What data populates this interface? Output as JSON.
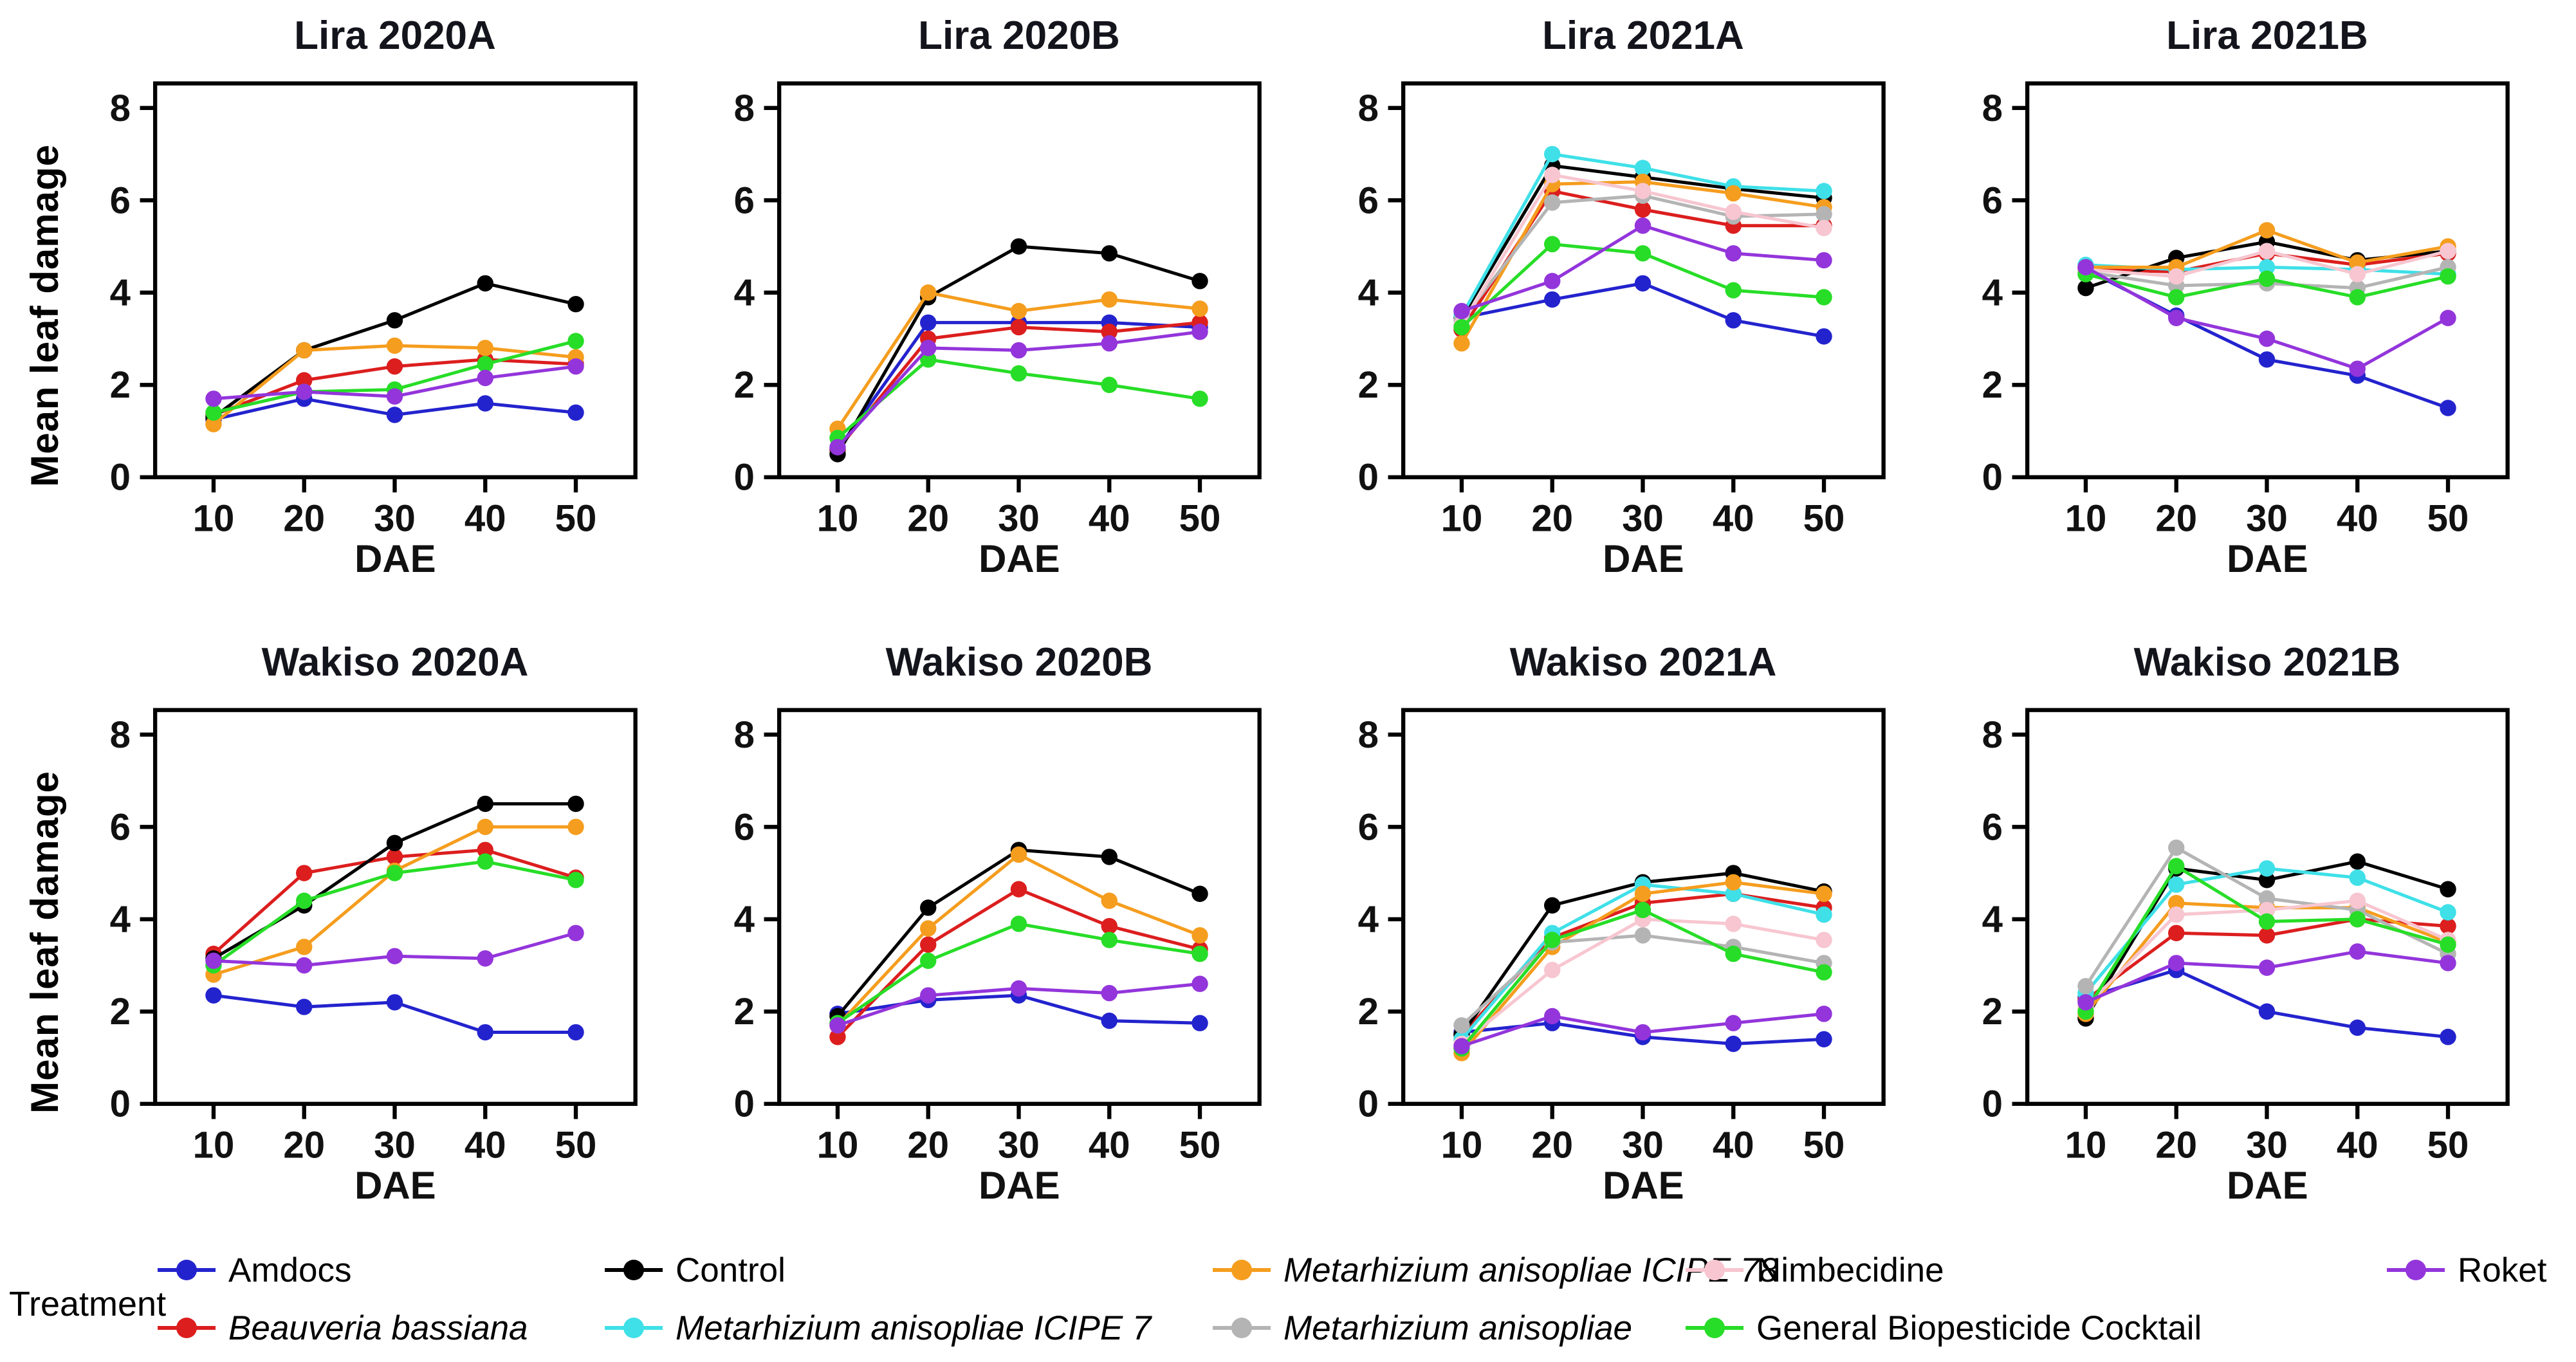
{
  "figure": {
    "ylabel": "Mean leaf damage",
    "xlabel": "DAE",
    "legend_title": "Treatment"
  },
  "treatments": [
    {
      "name": "Amdocs",
      "color": "#2323CE",
      "italic": false
    },
    {
      "name": "Beauveria bassiana",
      "color": "#DC1E1E",
      "italic": true
    },
    {
      "name": "Control",
      "color": "#000000",
      "italic": false
    },
    {
      "name": "Metarhizium anisopliae ICIPE 7",
      "color": "#3FE0E8",
      "italic": true
    },
    {
      "name": "Metarhizium anisopliae ICIPE 78",
      "color": "#F59D1E",
      "italic": true
    },
    {
      "name": "Metarhizium anisopliae",
      "color": "#B4B4B4",
      "italic": true
    },
    {
      "name": "Nimbecidine",
      "color": "#F7C6D0",
      "italic": false
    },
    {
      "name": "General Biopesticide Cocktail",
      "color": "#27DD27",
      "italic": false
    },
    {
      "name": "Roket",
      "color": "#9335DB",
      "italic": false
    }
  ],
  "chart_data": [
    {
      "type": "line",
      "title": "Lira 2020A",
      "xlabel": "DAE",
      "x": [
        10,
        20,
        30,
        40,
        50
      ],
      "ylim": [
        0,
        8
      ],
      "yticks": [
        0,
        2,
        4,
        6,
        8
      ],
      "series": [
        {
          "name": "Amdocs",
          "values": [
            1.25,
            1.7,
            1.35,
            1.6,
            1.4
          ]
        },
        {
          "name": "Beauveria bassiana",
          "values": [
            1.35,
            2.1,
            2.4,
            2.55,
            2.45
          ]
        },
        {
          "name": "Control",
          "values": [
            1.3,
            2.75,
            3.4,
            4.2,
            3.75
          ]
        },
        {
          "name": "Metarhizium anisopliae ICIPE 78",
          "values": [
            1.15,
            2.75,
            2.85,
            2.8,
            2.6
          ]
        },
        {
          "name": "General Biopesticide Cocktail",
          "values": [
            1.4,
            1.85,
            1.9,
            2.45,
            2.95
          ]
        },
        {
          "name": "Roket",
          "values": [
            1.7,
            1.85,
            1.75,
            2.15,
            2.4
          ]
        }
      ]
    },
    {
      "type": "line",
      "title": "Lira 2020B",
      "xlabel": "DAE",
      "x": [
        10,
        20,
        30,
        40,
        50
      ],
      "ylim": [
        0,
        8
      ],
      "yticks": [
        0,
        2,
        4,
        6,
        8
      ],
      "series": [
        {
          "name": "Amdocs",
          "values": [
            0.6,
            3.35,
            3.35,
            3.35,
            3.25
          ]
        },
        {
          "name": "Beauveria bassiana",
          "values": [
            0.6,
            3.0,
            3.25,
            3.15,
            3.35
          ]
        },
        {
          "name": "Control",
          "values": [
            0.5,
            3.9,
            5.0,
            4.85,
            4.25
          ]
        },
        {
          "name": "Metarhizium anisopliae ICIPE 78",
          "values": [
            1.05,
            4.0,
            3.6,
            3.85,
            3.65
          ]
        },
        {
          "name": "General Biopesticide Cocktail",
          "values": [
            0.85,
            2.55,
            2.25,
            2.0,
            1.7
          ]
        },
        {
          "name": "Roket",
          "values": [
            0.65,
            2.8,
            2.75,
            2.9,
            3.15
          ]
        }
      ]
    },
    {
      "type": "line",
      "title": "Lira 2021A",
      "xlabel": "DAE",
      "x": [
        10,
        20,
        30,
        40,
        50
      ],
      "ylim": [
        0,
        8
      ],
      "yticks": [
        0,
        2,
        4,
        6,
        8
      ],
      "series": [
        {
          "name": "Amdocs",
          "values": [
            3.45,
            3.85,
            4.2,
            3.4,
            3.05
          ]
        },
        {
          "name": "Beauveria bassiana",
          "values": [
            3.2,
            6.2,
            5.8,
            5.45,
            5.45
          ]
        },
        {
          "name": "Control",
          "values": [
            3.45,
            6.75,
            6.5,
            6.25,
            6.05
          ]
        },
        {
          "name": "Metarhizium anisopliae ICIPE 7",
          "values": [
            3.5,
            7.0,
            6.7,
            6.3,
            6.2
          ]
        },
        {
          "name": "Metarhizium anisopliae ICIPE 78",
          "values": [
            2.9,
            6.35,
            6.4,
            6.15,
            5.85
          ]
        },
        {
          "name": "Metarhizium anisopliae",
          "values": [
            3.4,
            5.95,
            6.1,
            5.65,
            5.7
          ]
        },
        {
          "name": "Nimbecidine",
          "values": [
            3.3,
            6.55,
            6.2,
            5.75,
            5.4
          ]
        },
        {
          "name": "General Biopesticide Cocktail",
          "values": [
            3.25,
            5.05,
            4.85,
            4.05,
            3.9
          ]
        },
        {
          "name": "Roket",
          "values": [
            3.6,
            4.25,
            5.45,
            4.85,
            4.7
          ]
        }
      ]
    },
    {
      "type": "line",
      "title": "Lira 2021B",
      "xlabel": "DAE",
      "x": [
        10,
        20,
        30,
        40,
        50
      ],
      "ylim": [
        0,
        8
      ],
      "yticks": [
        0,
        2,
        4,
        6,
        8
      ],
      "series": [
        {
          "name": "Amdocs",
          "values": [
            4.5,
            3.5,
            2.55,
            2.2,
            1.5
          ]
        },
        {
          "name": "Beauveria bassiana",
          "values": [
            4.5,
            4.45,
            4.85,
            4.6,
            4.85
          ]
        },
        {
          "name": "Control",
          "values": [
            4.1,
            4.75,
            5.1,
            4.7,
            4.9
          ]
        },
        {
          "name": "Metarhizium anisopliae ICIPE 7",
          "values": [
            4.6,
            4.5,
            4.55,
            4.5,
            4.4
          ]
        },
        {
          "name": "Metarhizium anisopliae ICIPE 78",
          "values": [
            4.55,
            4.55,
            5.35,
            4.65,
            5.0
          ]
        },
        {
          "name": "Metarhizium anisopliae",
          "values": [
            4.45,
            4.15,
            4.2,
            4.1,
            4.55
          ]
        },
        {
          "name": "Nimbecidine",
          "values": [
            4.5,
            4.35,
            4.9,
            4.4,
            4.9
          ]
        },
        {
          "name": "General Biopesticide Cocktail",
          "values": [
            4.4,
            3.9,
            4.3,
            3.9,
            4.35
          ]
        },
        {
          "name": "Roket",
          "values": [
            4.55,
            3.45,
            3.0,
            2.35,
            3.45
          ]
        }
      ]
    },
    {
      "type": "line",
      "title": "Wakiso 2020A",
      "xlabel": "DAE",
      "x": [
        10,
        20,
        30,
        40,
        50
      ],
      "ylim": [
        0,
        8
      ],
      "yticks": [
        0,
        2,
        4,
        6,
        8
      ],
      "series": [
        {
          "name": "Amdocs",
          "values": [
            2.35,
            2.1,
            2.2,
            1.55,
            1.55
          ]
        },
        {
          "name": "Beauveria bassiana",
          "values": [
            3.25,
            5.0,
            5.35,
            5.5,
            4.9
          ]
        },
        {
          "name": "Control",
          "values": [
            3.15,
            4.3,
            5.65,
            6.5,
            6.5
          ]
        },
        {
          "name": "Metarhizium anisopliae ICIPE 78",
          "values": [
            2.8,
            3.4,
            5.05,
            6.0,
            6.0
          ]
        },
        {
          "name": "General Biopesticide Cocktail",
          "values": [
            3.0,
            4.4,
            5.0,
            5.25,
            4.85
          ]
        },
        {
          "name": "Roket",
          "values": [
            3.1,
            3.0,
            3.2,
            3.15,
            3.7
          ]
        }
      ]
    },
    {
      "type": "line",
      "title": "Wakiso 2020B",
      "xlabel": "DAE",
      "x": [
        10,
        20,
        30,
        40,
        50
      ],
      "ylim": [
        0,
        8
      ],
      "yticks": [
        0,
        2,
        4,
        6,
        8
      ],
      "series": [
        {
          "name": "Amdocs",
          "values": [
            1.95,
            2.25,
            2.35,
            1.8,
            1.75
          ]
        },
        {
          "name": "Beauveria bassiana",
          "values": [
            1.45,
            3.45,
            4.65,
            3.85,
            3.35
          ]
        },
        {
          "name": "Control",
          "values": [
            1.9,
            4.25,
            5.5,
            5.35,
            4.55
          ]
        },
        {
          "name": "Metarhizium anisopliae ICIPE 78",
          "values": [
            1.7,
            3.8,
            5.4,
            4.4,
            3.65
          ]
        },
        {
          "name": "General Biopesticide Cocktail",
          "values": [
            1.75,
            3.1,
            3.9,
            3.55,
            3.25
          ]
        },
        {
          "name": "Roket",
          "values": [
            1.7,
            2.35,
            2.5,
            2.4,
            2.6
          ]
        }
      ]
    },
    {
      "type": "line",
      "title": "Wakiso 2021A",
      "xlabel": "DAE",
      "x": [
        10,
        20,
        30,
        40,
        50
      ],
      "ylim": [
        0,
        8
      ],
      "yticks": [
        0,
        2,
        4,
        6,
        8
      ],
      "series": [
        {
          "name": "Amdocs",
          "values": [
            1.55,
            1.75,
            1.45,
            1.3,
            1.4
          ]
        },
        {
          "name": "Beauveria bassiana",
          "values": [
            1.5,
            3.6,
            4.35,
            4.55,
            4.25
          ]
        },
        {
          "name": "Control",
          "values": [
            1.5,
            4.3,
            4.8,
            5.0,
            4.6
          ]
        },
        {
          "name": "Metarhizium anisopliae ICIPE 7",
          "values": [
            1.4,
            3.7,
            4.75,
            4.55,
            4.1
          ]
        },
        {
          "name": "Metarhizium anisopliae ICIPE 78",
          "values": [
            1.1,
            3.4,
            4.55,
            4.8,
            4.55
          ]
        },
        {
          "name": "Metarhizium anisopliae",
          "values": [
            1.7,
            3.5,
            3.65,
            3.4,
            3.05
          ]
        },
        {
          "name": "Nimbecidine",
          "values": [
            1.3,
            2.9,
            4.0,
            3.9,
            3.55
          ]
        },
        {
          "name": "General Biopesticide Cocktail",
          "values": [
            1.2,
            3.55,
            4.2,
            3.25,
            2.85
          ]
        },
        {
          "name": "Roket",
          "values": [
            1.25,
            1.9,
            1.55,
            1.75,
            1.95
          ]
        }
      ]
    },
    {
      "type": "line",
      "title": "Wakiso 2021B",
      "xlabel": "DAE",
      "x": [
        10,
        20,
        30,
        40,
        50
      ],
      "ylim": [
        0,
        8
      ],
      "yticks": [
        0,
        2,
        4,
        6,
        8
      ],
      "series": [
        {
          "name": "Amdocs",
          "values": [
            2.3,
            2.9,
            2.0,
            1.65,
            1.45
          ]
        },
        {
          "name": "Beauveria bassiana",
          "values": [
            2.25,
            3.7,
            3.65,
            4.0,
            3.85
          ]
        },
        {
          "name": "Control",
          "values": [
            1.85,
            5.1,
            4.85,
            5.25,
            4.65
          ]
        },
        {
          "name": "Metarhizium anisopliae ICIPE 7",
          "values": [
            2.4,
            4.75,
            5.1,
            4.9,
            4.15
          ]
        },
        {
          "name": "Metarhizium anisopliae ICIPE 78",
          "values": [
            1.95,
            4.35,
            4.25,
            4.25,
            3.5
          ]
        },
        {
          "name": "Metarhizium anisopliae",
          "values": [
            2.55,
            5.55,
            4.45,
            4.2,
            3.25
          ]
        },
        {
          "name": "Nimbecidine",
          "values": [
            2.1,
            4.1,
            4.2,
            4.4,
            3.55
          ]
        },
        {
          "name": "General Biopesticide Cocktail",
          "values": [
            2.0,
            5.15,
            3.95,
            4.0,
            3.45
          ]
        },
        {
          "name": "Roket",
          "values": [
            2.2,
            3.05,
            2.95,
            3.3,
            3.05
          ]
        }
      ]
    }
  ],
  "legend_columns": [
    [
      0,
      1
    ],
    [
      2,
      3
    ],
    [
      4,
      5
    ],
    [
      6,
      7
    ],
    [
      8
    ]
  ]
}
